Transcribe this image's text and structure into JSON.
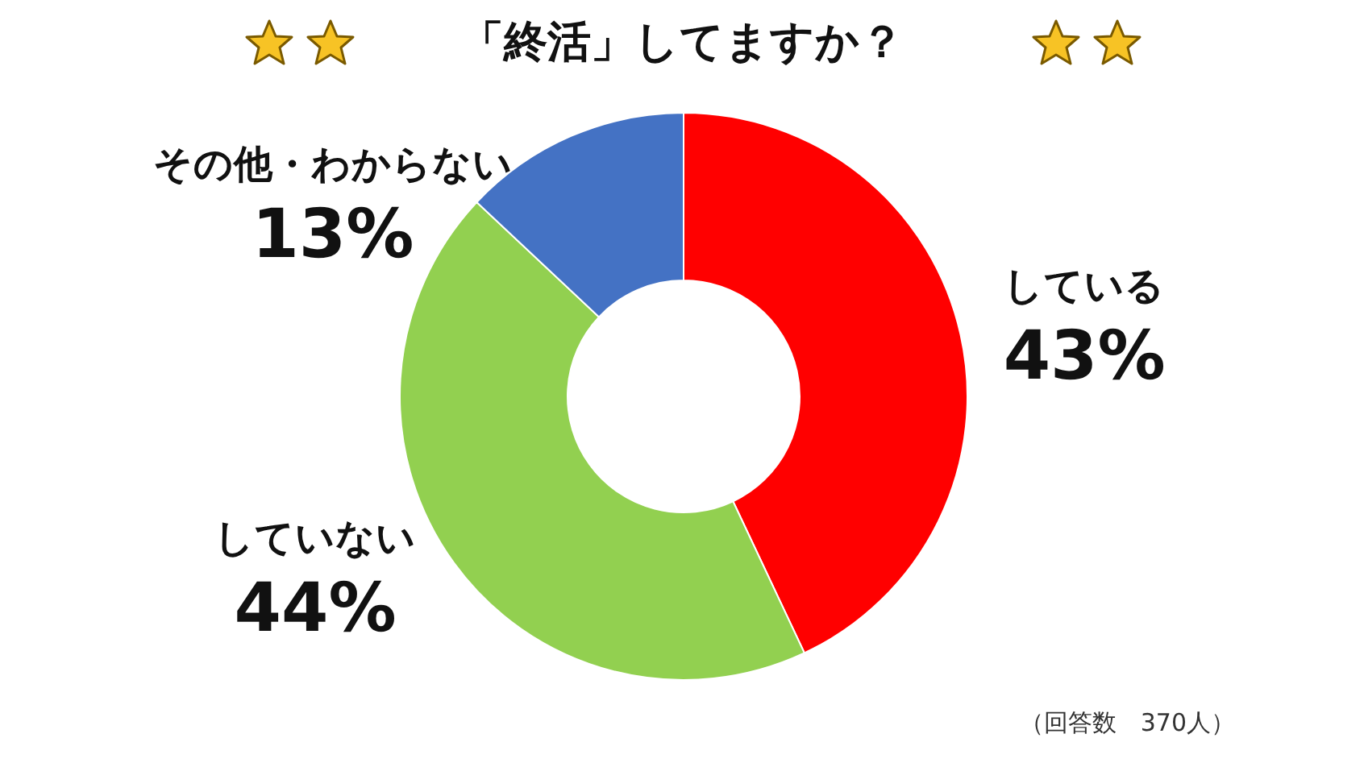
{
  "chart_data": {
    "type": "donut",
    "title": "「終活」してますか？",
    "categories": [
      "している",
      "していない",
      "その他・わからない"
    ],
    "values": [
      43,
      44,
      13
    ],
    "colors": [
      "#ff0000",
      "#92d050",
      "#4472c4"
    ],
    "value_labels": [
      "43%",
      "44%",
      "13%"
    ],
    "annotations": [
      "（回答数　370人）"
    ],
    "legend": false
  }
}
